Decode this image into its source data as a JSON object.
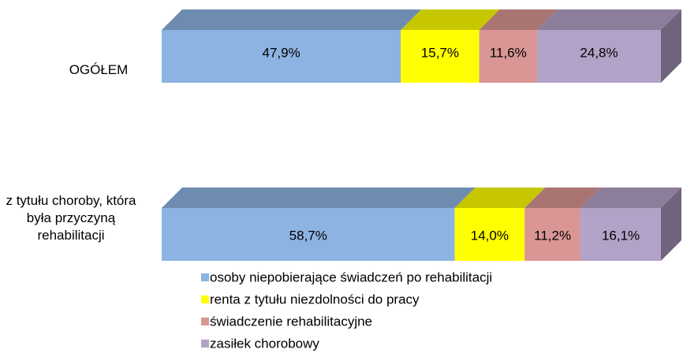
{
  "chart_data": {
    "type": "stacked-bar-100-horizontal",
    "categories": [
      "OGÓŁEM",
      "z tytułu choroby, która była przyczyną rehabilitacji"
    ],
    "series": [
      {
        "name": "osoby niepobierające świadczeń po rehabilitacji",
        "color": "#8db3e2",
        "values": [
          47.9,
          58.7
        ],
        "value_labels": [
          "47,9%",
          "58,7%"
        ]
      },
      {
        "name": "renta z tytułu niezdolności do pracy",
        "color": "#ffff00",
        "values": [
          15.7,
          14.0
        ],
        "value_labels": [
          "15,7%",
          "14,0%"
        ]
      },
      {
        "name": "świadczenie rehabilitacyjne",
        "color": "#d99694",
        "values": [
          11.6,
          11.2
        ],
        "value_labels": [
          "11,6%",
          "11,2%"
        ]
      },
      {
        "name": "zasiłek chorobowy",
        "color": "#b3a2c7",
        "values": [
          24.8,
          16.1
        ],
        "value_labels": [
          "24,8%",
          "16,1%"
        ]
      }
    ],
    "xlim": [
      0,
      100
    ],
    "legend": "bottom"
  }
}
